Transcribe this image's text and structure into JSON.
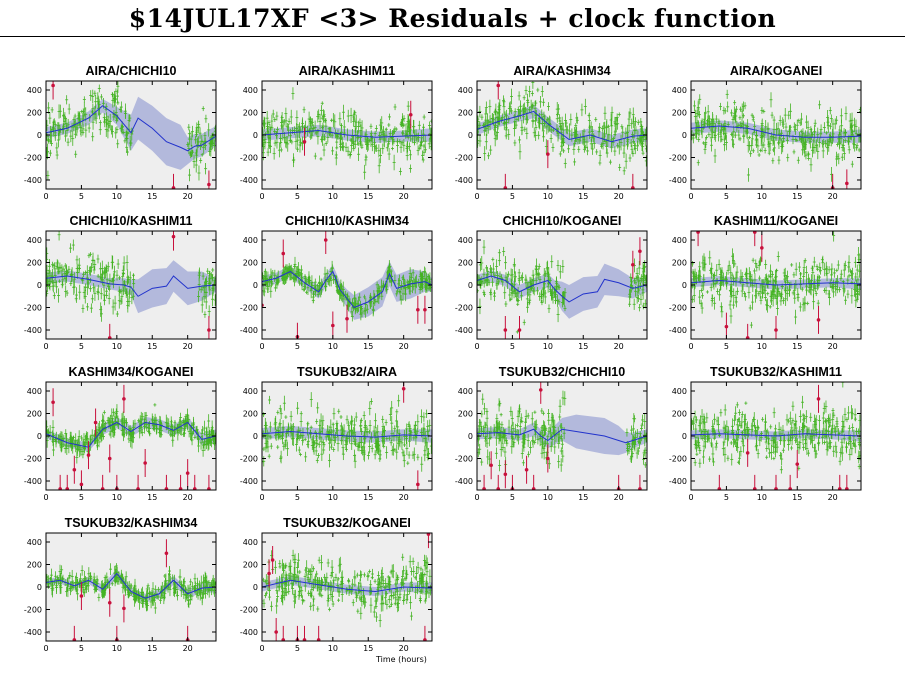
{
  "title": "$14JUL17XF <3> Residuals + clock function",
  "x_caption": "Time (hours)",
  "colors": {
    "panel_background": "#eeeeee",
    "residual_points": "#44b323",
    "outliers": "#c8103c",
    "clock_function": "#2233cc",
    "clock_band": "#b3b9dc"
  },
  "chart_data": [
    {
      "type": "scatter",
      "title": "AIRA/CHICHI10",
      "xlim": [
        0,
        24
      ],
      "ylim": [
        -480,
        480
      ],
      "xticks": [
        0,
        5,
        10,
        15,
        20
      ],
      "yticks": [
        400,
        200,
        0,
        -200,
        -400
      ],
      "clock": {
        "x": [
          0,
          3,
          6,
          8,
          10,
          12,
          13,
          15,
          17,
          19,
          20,
          21,
          22,
          24
        ],
        "y": [
          20,
          60,
          150,
          260,
          170,
          20,
          150,
          60,
          -60,
          -110,
          -140,
          -100,
          -90,
          -10
        ],
        "band": [
          50,
          50,
          60,
          60,
          80,
          160,
          190,
          200,
          210,
          200,
          120,
          110,
          100,
          90
        ]
      },
      "outliers": [
        [
          1,
          440
        ],
        [
          18,
          -470
        ],
        [
          23,
          -440
        ]
      ]
    },
    {
      "type": "scatter",
      "title": "AIRA/KASHIM11",
      "xlim": [
        0,
        24
      ],
      "ylim": [
        -480,
        480
      ],
      "xticks": [
        0,
        5,
        10,
        15,
        20
      ],
      "yticks": [
        400,
        200,
        0,
        -200,
        -400
      ],
      "clock": {
        "x": [
          0,
          4,
          8,
          12,
          16,
          20,
          24
        ],
        "y": [
          0,
          20,
          40,
          0,
          -20,
          -10,
          0
        ],
        "band": [
          50,
          50,
          50,
          50,
          50,
          50,
          60
        ]
      },
      "outliers": [
        [
          6,
          -60
        ],
        [
          21,
          180
        ]
      ]
    },
    {
      "type": "scatter",
      "title": "AIRA/KASHIM34",
      "xlim": [
        0,
        24
      ],
      "ylim": [
        -480,
        480
      ],
      "xticks": [
        0,
        5,
        10,
        15,
        20
      ],
      "yticks": [
        400,
        200,
        0,
        -200,
        -400
      ],
      "clock": {
        "x": [
          0,
          3,
          6,
          8,
          10,
          13,
          16,
          19,
          22,
          24
        ],
        "y": [
          50,
          120,
          170,
          210,
          100,
          -40,
          0,
          -60,
          -10,
          0
        ],
        "band": [
          50,
          50,
          50,
          60,
          60,
          60,
          60,
          60,
          60,
          60
        ]
      },
      "outliers": [
        [
          3,
          440
        ],
        [
          4,
          -470
        ],
        [
          10,
          -170
        ],
        [
          22,
          -470
        ]
      ]
    },
    {
      "type": "scatter",
      "title": "AIRA/KOGANEI",
      "xlim": [
        0,
        24
      ],
      "ylim": [
        -480,
        480
      ],
      "xticks": [
        0,
        5,
        10,
        15,
        20
      ],
      "yticks": [
        400,
        200,
        0,
        -200,
        -400
      ],
      "clock": {
        "x": [
          0,
          4,
          8,
          12,
          16,
          20,
          24
        ],
        "y": [
          60,
          80,
          60,
          0,
          -20,
          -20,
          -10
        ],
        "band": [
          50,
          50,
          50,
          50,
          50,
          50,
          60
        ]
      },
      "outliers": [
        [
          20,
          -470
        ],
        [
          22,
          -430
        ]
      ]
    },
    {
      "type": "scatter",
      "title": "CHICHI10/KASHIM11",
      "xlim": [
        0,
        24
      ],
      "ylim": [
        -480,
        480
      ],
      "xticks": [
        0,
        5,
        10,
        15,
        20
      ],
      "yticks": [
        400,
        200,
        0,
        -200,
        -400
      ],
      "clock": {
        "x": [
          0,
          3,
          6,
          9,
          11,
          12,
          13,
          15,
          17,
          18,
          20,
          22,
          24
        ],
        "y": [
          60,
          80,
          50,
          10,
          0,
          -20,
          -100,
          -30,
          -10,
          80,
          -30,
          -10,
          0
        ],
        "band": [
          50,
          50,
          50,
          50,
          60,
          70,
          150,
          170,
          160,
          140,
          150,
          130,
          60
        ]
      },
      "outliers": [
        [
          9,
          -470
        ],
        [
          18,
          430
        ],
        [
          23,
          -400
        ]
      ]
    },
    {
      "type": "scatter",
      "title": "CHICHI10/KASHIM34",
      "xlim": [
        0,
        24
      ],
      "ylim": [
        -480,
        480
      ],
      "xticks": [
        0,
        5,
        10,
        15,
        20
      ],
      "yticks": [
        400,
        200,
        0,
        -200,
        -400
      ],
      "clock": {
        "x": [
          0,
          2,
          4,
          6,
          8,
          9,
          10,
          11,
          12,
          13,
          15,
          17,
          18,
          19,
          21,
          23,
          24
        ],
        "y": [
          30,
          60,
          120,
          20,
          -60,
          40,
          120,
          -40,
          -120,
          -200,
          -150,
          -60,
          100,
          -30,
          10,
          30,
          0
        ],
        "band": [
          50,
          50,
          50,
          50,
          60,
          60,
          60,
          70,
          80,
          110,
          130,
          130,
          110,
          120,
          130,
          90,
          60
        ]
      },
      "outliers": [
        [
          0,
          -180
        ],
        [
          3,
          280
        ],
        [
          5,
          -460
        ],
        [
          9,
          400
        ],
        [
          10,
          -360
        ],
        [
          12,
          -300
        ],
        [
          22,
          -220
        ],
        [
          23,
          -220
        ]
      ]
    },
    {
      "type": "scatter",
      "title": "CHICHI10/KOGANEI",
      "xlim": [
        0,
        24
      ],
      "ylim": [
        -480,
        480
      ],
      "xticks": [
        0,
        5,
        10,
        15,
        20
      ],
      "yticks": [
        400,
        200,
        0,
        -200,
        -400
      ],
      "clock": {
        "x": [
          0,
          2,
          4,
          6,
          8,
          10,
          11,
          12,
          13,
          15,
          17,
          18,
          20,
          22,
          24
        ],
        "y": [
          40,
          80,
          40,
          -60,
          0,
          40,
          -40,
          -100,
          -150,
          -80,
          -60,
          50,
          20,
          -30,
          0
        ],
        "band": [
          50,
          50,
          50,
          60,
          60,
          60,
          80,
          130,
          150,
          150,
          140,
          140,
          120,
          90,
          60
        ]
      },
      "outliers": [
        [
          4,
          -400
        ],
        [
          6,
          -400
        ],
        [
          22,
          180
        ],
        [
          23,
          300
        ]
      ]
    },
    {
      "type": "scatter",
      "title": "KASHIM11/KOGANEI",
      "xlim": [
        0,
        24
      ],
      "ylim": [
        -480,
        480
      ],
      "xticks": [
        0,
        5,
        10,
        15,
        20
      ],
      "yticks": [
        400,
        200,
        0,
        -200,
        -400
      ],
      "clock": {
        "x": [
          0,
          4,
          8,
          12,
          16,
          20,
          24
        ],
        "y": [
          20,
          40,
          20,
          0,
          10,
          20,
          10
        ],
        "band": [
          40,
          40,
          40,
          40,
          40,
          40,
          50
        ]
      },
      "outliers": [
        [
          1,
          470
        ],
        [
          5,
          -370
        ],
        [
          8,
          -470
        ],
        [
          9,
          470
        ],
        [
          10,
          330
        ],
        [
          12,
          -400
        ],
        [
          18,
          -310
        ]
      ]
    },
    {
      "type": "scatter",
      "title": "KASHIM34/KOGANEI",
      "xlim": [
        0,
        24
      ],
      "ylim": [
        -480,
        480
      ],
      "xticks": [
        0,
        5,
        10,
        15,
        20
      ],
      "yticks": [
        400,
        200,
        0,
        -200,
        -400
      ],
      "clock": {
        "x": [
          0,
          3,
          6,
          8,
          10,
          12,
          14,
          16,
          18,
          20,
          22,
          24
        ],
        "y": [
          20,
          -60,
          -100,
          60,
          120,
          40,
          120,
          100,
          50,
          120,
          -30,
          0
        ],
        "band": [
          40,
          40,
          40,
          50,
          50,
          50,
          50,
          50,
          50,
          50,
          50,
          60
        ]
      },
      "outliers": [
        [
          1,
          300
        ],
        [
          2,
          -470
        ],
        [
          3,
          -470
        ],
        [
          4,
          -300
        ],
        [
          5,
          -430
        ],
        [
          7,
          120
        ],
        [
          8,
          -470
        ],
        [
          9,
          -200
        ],
        [
          10,
          -470
        ],
        [
          11,
          330
        ],
        [
          13,
          -470
        ],
        [
          17,
          -470
        ],
        [
          19,
          -470
        ],
        [
          21,
          -470
        ],
        [
          23,
          -470
        ],
        [
          6,
          -170
        ],
        [
          14,
          -240
        ],
        [
          20,
          -330
        ]
      ]
    },
    {
      "type": "scatter",
      "title": "TSUKUB32/AIRA",
      "xlim": [
        0,
        24
      ],
      "ylim": [
        -480,
        480
      ],
      "xticks": [
        0,
        5,
        10,
        15,
        20
      ],
      "yticks": [
        400,
        200,
        0,
        -200,
        -400
      ],
      "clock": {
        "x": [
          0,
          4,
          8,
          12,
          16,
          20,
          24
        ],
        "y": [
          20,
          40,
          20,
          0,
          -10,
          10,
          0
        ],
        "band": [
          50,
          50,
          50,
          50,
          50,
          50,
          60
        ]
      },
      "outliers": [
        [
          20,
          420
        ],
        [
          22,
          -430
        ]
      ]
    },
    {
      "type": "scatter",
      "title": "TSUKUB32/CHICHI10",
      "xlim": [
        0,
        24
      ],
      "ylim": [
        -480,
        480
      ],
      "xticks": [
        0,
        5,
        10,
        15,
        20
      ],
      "yticks": [
        400,
        200,
        0,
        -200,
        -400
      ],
      "clock": {
        "x": [
          0,
          3,
          6,
          8,
          9,
          10,
          12,
          14,
          18,
          20,
          21,
          22,
          24
        ],
        "y": [
          20,
          30,
          10,
          60,
          0,
          -40,
          60,
          40,
          0,
          -40,
          -60,
          -40,
          0
        ],
        "band": [
          50,
          50,
          50,
          60,
          60,
          70,
          100,
          150,
          160,
          130,
          90,
          70,
          60
        ]
      },
      "outliers": [
        [
          1,
          -470
        ],
        [
          2,
          -260
        ],
        [
          3,
          -470
        ],
        [
          4,
          -340
        ],
        [
          5,
          -470
        ],
        [
          7,
          -300
        ],
        [
          8,
          -470
        ],
        [
          9,
          410
        ],
        [
          10,
          -200
        ],
        [
          20,
          -470
        ],
        [
          23,
          -470
        ]
      ]
    },
    {
      "type": "scatter",
      "title": "TSUKUB32/KASHIM11",
      "xlim": [
        0,
        24
      ],
      "ylim": [
        -480,
        480
      ],
      "xticks": [
        0,
        5,
        10,
        15,
        20
      ],
      "yticks": [
        400,
        200,
        0,
        -200,
        -400
      ],
      "clock": {
        "x": [
          0,
          4,
          8,
          12,
          16,
          20,
          24
        ],
        "y": [
          10,
          20,
          10,
          0,
          20,
          10,
          0
        ],
        "band": [
          40,
          40,
          40,
          40,
          40,
          40,
          50
        ]
      },
      "outliers": [
        [
          4,
          -470
        ],
        [
          9,
          -470
        ],
        [
          12,
          -470
        ],
        [
          14,
          -470
        ],
        [
          18,
          330
        ],
        [
          21,
          -470
        ],
        [
          22,
          -470
        ],
        [
          8,
          -150
        ],
        [
          15,
          -250
        ]
      ]
    },
    {
      "type": "scatter",
      "title": "TSUKUB32/KASHIM34",
      "xlim": [
        0,
        24
      ],
      "ylim": [
        -480,
        480
      ],
      "xticks": [
        0,
        5,
        10,
        15,
        20
      ],
      "yticks": [
        400,
        200,
        0,
        -200,
        -400
      ],
      "clock": {
        "x": [
          0,
          2,
          4,
          6,
          8,
          10,
          12,
          14,
          16,
          18,
          20,
          22,
          24
        ],
        "y": [
          40,
          60,
          10,
          60,
          -20,
          120,
          -40,
          -100,
          -60,
          60,
          -60,
          -10,
          0
        ],
        "band": [
          30,
          30,
          30,
          30,
          40,
          40,
          40,
          40,
          40,
          40,
          40,
          40,
          50
        ]
      },
      "outliers": [
        [
          4,
          -470
        ],
        [
          5,
          -80
        ],
        [
          9,
          -140
        ],
        [
          10,
          -470
        ],
        [
          11,
          -190
        ],
        [
          17,
          300
        ],
        [
          20,
          -470
        ]
      ]
    },
    {
      "type": "scatter",
      "title": "TSUKUB32/KOGANEI",
      "xlim": [
        0,
        24
      ],
      "ylim": [
        -480,
        480
      ],
      "xticks": [
        0,
        5,
        10,
        15,
        20
      ],
      "yticks": [
        400,
        200,
        0,
        -200,
        -400
      ],
      "clock": {
        "x": [
          0,
          4,
          8,
          12,
          16,
          20,
          24
        ],
        "y": [
          0,
          60,
          20,
          -20,
          -40,
          0,
          -10
        ],
        "band": [
          40,
          40,
          40,
          40,
          40,
          40,
          50
        ]
      },
      "outliers": [
        [
          1,
          120
        ],
        [
          1.5,
          240
        ],
        [
          2,
          -400
        ],
        [
          3,
          -470
        ],
        [
          5,
          -470
        ],
        [
          6,
          -470
        ],
        [
          8,
          -470
        ],
        [
          23,
          -470
        ],
        [
          23.5,
          470
        ]
      ]
    }
  ]
}
